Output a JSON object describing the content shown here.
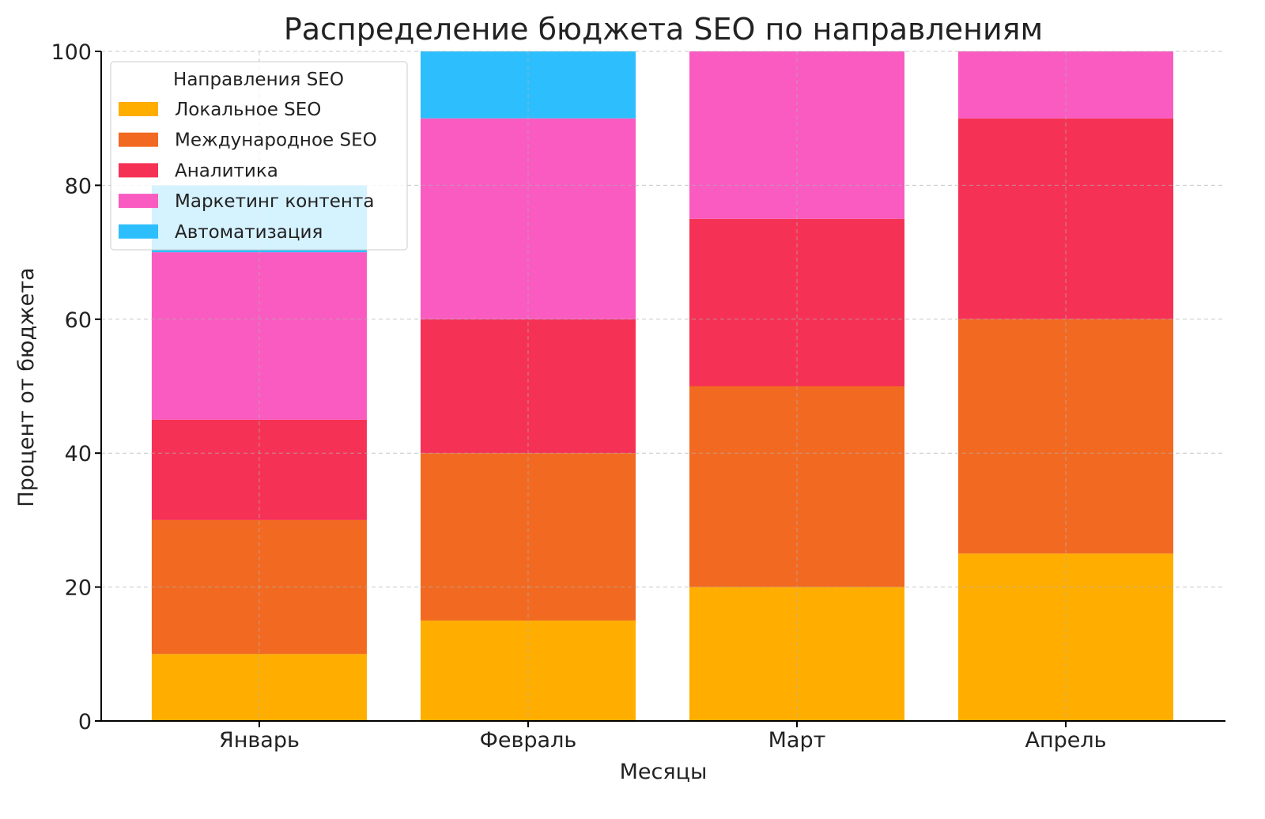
{
  "chart_data": {
    "type": "bar",
    "stacked": true,
    "title": "Распределение бюджета SEO по направлениям",
    "xlabel": "Месяцы",
    "ylabel": "Процент от бюджета",
    "categories": [
      "Январь",
      "Февраль",
      "Март",
      "Апрель"
    ],
    "ylim": [
      0,
      100
    ],
    "yticks": [
      0,
      20,
      40,
      60,
      80,
      100
    ],
    "grid": true,
    "legend": {
      "title": "Направления SEO",
      "placement": "top-left"
    },
    "series": [
      {
        "name": "Локальное SEO",
        "color": "#FFAE00",
        "values": [
          10,
          15,
          20,
          25
        ]
      },
      {
        "name": "Международное SEO",
        "color": "#F26A21",
        "values": [
          20,
          25,
          30,
          35
        ]
      },
      {
        "name": "Аналитика",
        "color": "#F53255",
        "values": [
          15,
          20,
          25,
          30
        ]
      },
      {
        "name": "Маркетинг контента",
        "color": "#F95BC1",
        "values": [
          25,
          30,
          25,
          10
        ]
      },
      {
        "name": "Автоматизация",
        "color": "#2DBFFD",
        "values": [
          10,
          10,
          0,
          0
        ]
      }
    ]
  }
}
